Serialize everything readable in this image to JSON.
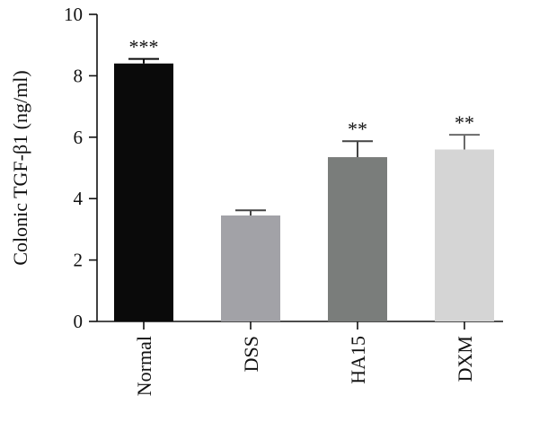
{
  "chart_data": {
    "type": "bar",
    "categories": [
      "Normal",
      "DSS",
      "HA15",
      "DXM"
    ],
    "values": [
      8.4,
      3.45,
      5.35,
      5.6
    ],
    "errors": [
      0.15,
      0.17,
      0.52,
      0.48
    ],
    "annotations": [
      "***",
      "",
      "**",
      "**"
    ],
    "bar_colors": [
      "#0a0a0a",
      "#a2a2a7",
      "#7a7d7b",
      "#d5d5d5"
    ],
    "title": "",
    "xlabel": "",
    "ylabel": "Colonic TGF-β1 (ng/ml)",
    "ylim": [
      0,
      10
    ],
    "yticks": [
      0,
      2,
      4,
      6,
      8,
      10
    ],
    "grid": false,
    "legend": "none"
  }
}
